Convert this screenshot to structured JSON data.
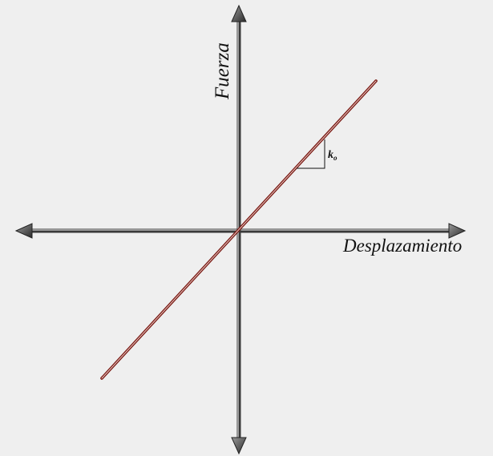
{
  "axes": {
    "y_label": "Fuerza",
    "x_label": "Desplazamiento"
  },
  "slope": {
    "symbol": "k",
    "subscript": "o"
  },
  "colors": {
    "background": "#efefef",
    "axis": "#3a3a3a",
    "axis_highlight": "#cfcfcf",
    "line": "#7a1a14",
    "line_highlight": "#e8c9c4"
  }
}
